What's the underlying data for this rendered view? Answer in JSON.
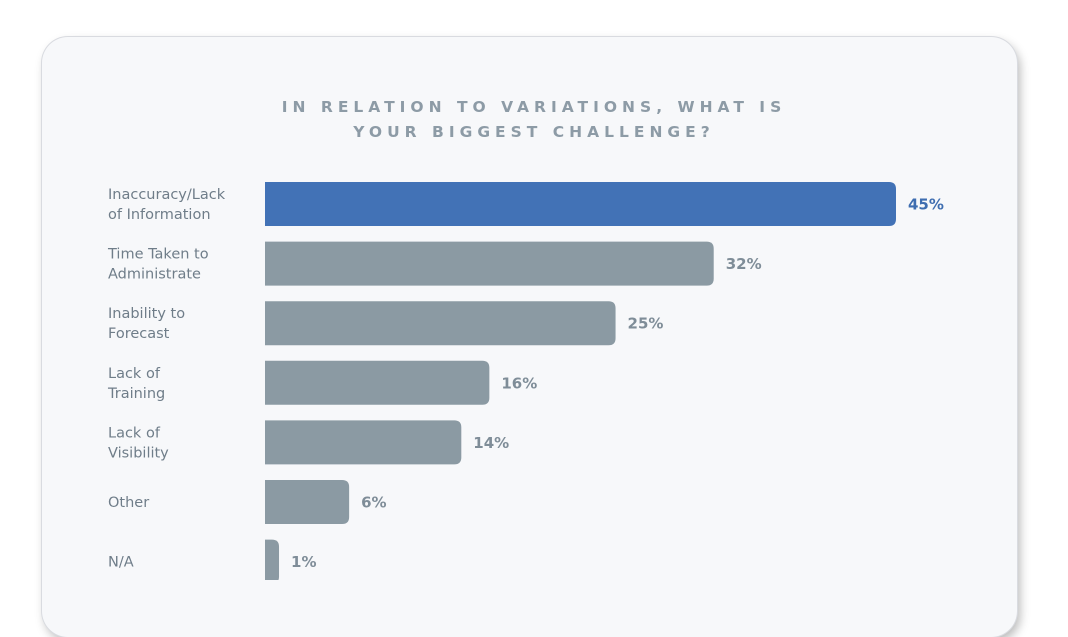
{
  "chart_data": {
    "type": "bar",
    "orientation": "horizontal",
    "title": [
      "IN RELATION TO VARIATIONS, WHAT IS",
      "YOUR BIGGEST CHALLENGE?"
    ],
    "categories": [
      [
        "Inaccuracy/Lack",
        "of Information"
      ],
      [
        "Time Taken to",
        "Administrate"
      ],
      [
        "Inability to",
        "Forecast"
      ],
      [
        "Lack of",
        "Training"
      ],
      [
        "Lack of",
        "Visibility"
      ],
      [
        "Other"
      ],
      [
        "N/A"
      ]
    ],
    "values": [
      45,
      32,
      25,
      16,
      14,
      6,
      1
    ],
    "value_labels": [
      "45%",
      "32%",
      "25%",
      "16%",
      "14%",
      "6%",
      "1%"
    ],
    "unit": "%",
    "xlim": [
      0,
      45
    ],
    "grid": false,
    "legend": "none",
    "highlight_index": 0
  },
  "colors": {
    "highlight_bar": "#4272b6",
    "bar": "#8b9aa3",
    "highlight_label": "#3e6db0",
    "label": "#7f8d98",
    "title": "#8d9ba6"
  }
}
